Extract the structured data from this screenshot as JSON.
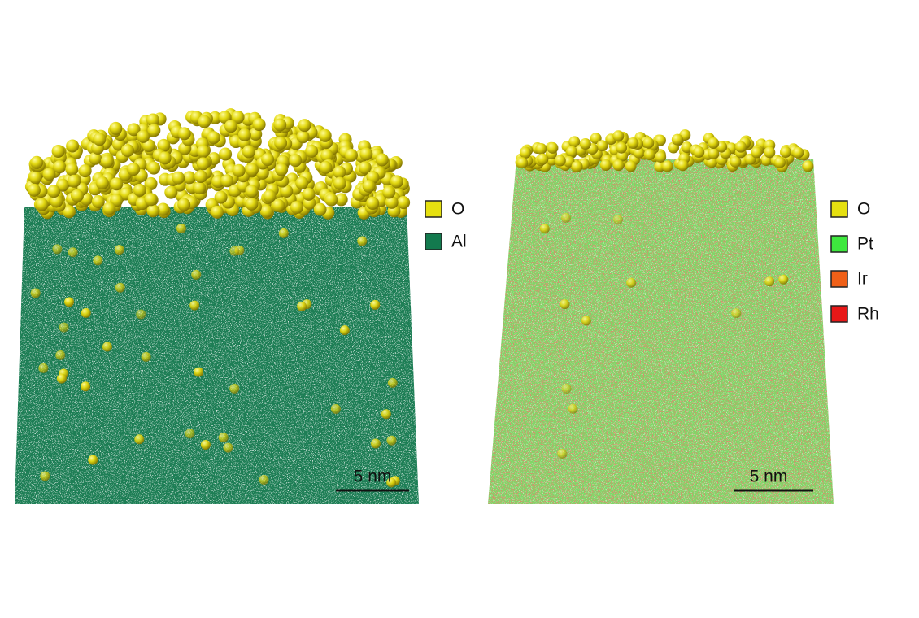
{
  "panels": [
    {
      "legend": [
        {
          "label": "O",
          "color": "#e6e010"
        },
        {
          "label": "Al",
          "color": "#137a4e"
        }
      ],
      "scale_bar": "5 nm"
    },
    {
      "legend": [
        {
          "label": "O",
          "color": "#e6e010"
        },
        {
          "label": "Pt",
          "color": "#3ee83e"
        },
        {
          "label": "Ir",
          "color": "#f06018"
        },
        {
          "label": "Rh",
          "color": "#e81818"
        }
      ],
      "scale_bar": "5 nm"
    }
  ]
}
